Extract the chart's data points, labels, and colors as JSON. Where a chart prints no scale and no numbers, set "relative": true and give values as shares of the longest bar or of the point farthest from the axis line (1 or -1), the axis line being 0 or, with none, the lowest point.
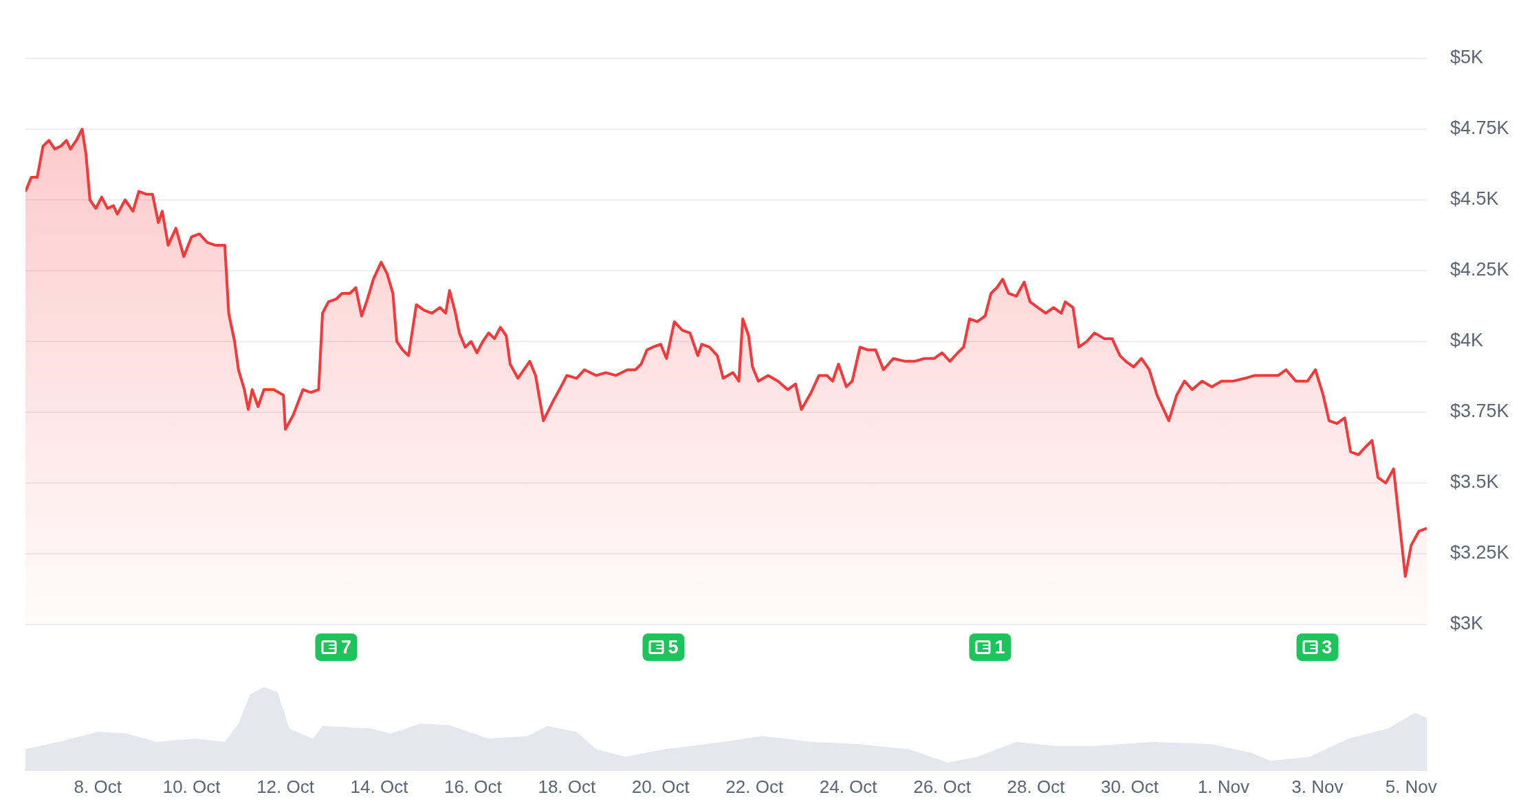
{
  "chart_data": [
    {
      "type": "area",
      "grid": "y",
      "tick_labels": "y",
      "xlim": [
        "--10-06T11:00",
        "--11-05T08:00"
      ],
      "ylim": [
        3000,
        5000
      ],
      "yticks": [
        {
          "value": 3000,
          "label": "$3K"
        },
        {
          "value": 3250,
          "label": "$3.25K"
        },
        {
          "value": 3500,
          "label": "$3.5K"
        },
        {
          "value": 3750,
          "label": "$3.75K"
        },
        {
          "value": 4000,
          "label": "$4K"
        },
        {
          "value": 4250,
          "label": "$4.25K"
        },
        {
          "value": 4500,
          "label": "$4.5K"
        },
        {
          "value": 4750,
          "label": "$4.75K"
        },
        {
          "value": 5000,
          "label": "$5K"
        }
      ],
      "annotations": [
        "7",
        "5",
        "1",
        "3"
      ],
      "color": "#f5383a",
      "x": [
        "--10-06T11:00",
        "--10-06T14:00",
        "--10-06T17:00",
        "--10-06T20:00",
        "--10-06T23:00",
        "--10-07T02:00",
        "--10-07T05:00",
        "--10-07T08:00",
        "--10-07T10:00",
        "--10-07T13:00",
        "--10-07T16:00",
        "--10-07T18:00",
        "--10-07T20:00",
        "--10-07T23:00",
        "--10-08T02:00",
        "--10-08T05:00",
        "--10-08T08:00",
        "--10-08T10:00",
        "--10-08T14:00",
        "--10-08T18:00",
        "--10-08T21:00",
        "--10-09T01:00",
        "--10-09T04:00",
        "--10-09T07:00",
        "--10-09T09:00",
        "--10-09T12:00",
        "--10-09T16:00",
        "--10-09T20:00",
        "--10-10T00:00",
        "--10-10T04:00",
        "--10-10T08:00",
        "--10-10T12:00",
        "--10-10T17:00",
        "--10-10T19:00",
        "--10-10T22:00",
        "--10-11T00:00",
        "--10-11T03:00",
        "--10-11T05:00",
        "--10-11T07:00",
        "--10-11T10:00",
        "--10-11T13:00",
        "--10-11T18:00",
        "--10-11T23:00",
        "--10-12T00:00",
        "--10-12T04:00",
        "--10-12T09:00",
        "--10-12T13:00",
        "--10-12T17:00",
        "--10-12T19:00",
        "--10-12T22:00",
        "--10-13T02:00",
        "--10-13T05:00",
        "--10-13T09:00",
        "--10-13T12:00",
        "--10-13T15:00",
        "--10-13T18:00",
        "--10-13T21:00",
        "--10-14T01:00",
        "--10-14T04:00",
        "--10-14T07:00",
        "--10-14T09:00",
        "--10-14T12:00",
        "--10-14T15:00",
        "--10-14T19:00",
        "--10-14T23:00",
        "--10-15T03:00",
        "--10-15T07:00",
        "--10-15T10:00",
        "--10-15T12:00",
        "--10-15T15:00",
        "--10-15T17:00",
        "--10-15T20:00",
        "--10-15T23:00",
        "--10-16T02:00",
        "--10-16T05:00",
        "--10-16T08:00",
        "--10-16T11:00",
        "--10-16T14:00",
        "--10-16T17:00",
        "--10-16T19:00",
        "--10-16T23:00",
        "--10-17T02:00",
        "--10-17T05:00",
        "--10-17T08:00",
        "--10-17T12:00",
        "--10-17T17:00",
        "--10-17T21:00",
        "--10-18T00:00",
        "--10-18T05:00",
        "--10-18T09:00",
        "--10-18T15:00",
        "--10-18T20:00",
        "--10-19T01:00",
        "--10-19T07:00",
        "--10-19T11:00",
        "--10-19T14:00",
        "--10-19T17:00",
        "--10-19T20:00",
        "--10-20T00:00",
        "--10-20T03:00",
        "--10-20T07:00",
        "--10-20T11:00",
        "--10-20T15:00",
        "--10-20T19:00",
        "--10-20T21:00",
        "--10-21T01:00",
        "--10-21T05:00",
        "--10-21T08:00",
        "--10-21T13:00",
        "--10-21T16:00",
        "--10-21T18:00",
        "--10-21T21:00",
        "--10-21T23:00",
        "--10-22T02:00",
        "--10-22T07:00",
        "--10-22T12:00",
        "--10-22T17:00",
        "--10-22T21:00",
        "--10-23T00:00",
        "--10-23T05:00",
        "--10-23T09:00",
        "--10-23T13:00",
        "--10-23T16:00",
        "--10-23T19:00",
        "--10-23T23:00",
        "--10-24T02:00",
        "--10-24T06:00",
        "--10-24T10:00",
        "--10-24T14:00",
        "--10-24T18:00",
        "--10-24T23:00",
        "--10-25T05:00",
        "--10-25T10:00",
        "--10-25T15:00",
        "--10-25T20:00",
        "--10-26T00:00",
        "--10-26T04:00",
        "--10-26T08:00",
        "--10-26T11:00",
        "--10-26T14:00",
        "--10-26T18:00",
        "--10-26T22:00",
        "--10-27T01:00",
        "--10-27T04:00",
        "--10-27T07:00",
        "--10-27T10:00",
        "--10-27T14:00",
        "--10-27T18:00",
        "--10-27T21:00",
        "--10-28T01:00",
        "--10-28T05:00",
        "--10-28T09:00",
        "--10-28T13:00",
        "--10-28T15:00",
        "--10-28T19:00",
        "--10-28T22:00",
        "--10-29T02:00",
        "--10-29T06:00",
        "--10-29T11:00",
        "--10-29T15:00",
        "--10-29T19:00",
        "--10-29T22:00",
        "--10-30T02:00",
        "--10-30T06:00",
        "--10-30T10:00",
        "--10-30T14:00",
        "--10-30T20:00",
        "--10-31T00:00",
        "--10-31T04:00",
        "--10-31T08:00",
        "--10-31T13:00",
        "--10-31T18:00",
        "--10-31T23:00",
        "--11-01T05:00",
        "--11-01T11:00",
        "--11-01T16:00",
        "--11-01T22:00",
        "--11-02T04:00",
        "--11-02T08:00",
        "--11-02T13:00",
        "--11-02T19:00",
        "--11-02T23:00",
        "--11-03T03:00",
        "--11-03T06:00",
        "--11-03T10:00",
        "--11-03T14:00",
        "--11-03T17:00",
        "--11-03T21:00",
        "--11-04T01:00",
        "--11-04T04:00",
        "--11-04T07:00",
        "--11-04T11:00",
        "--11-04T15:00",
        "--11-04T18:00",
        "--11-04T21:00",
        "--11-05T00:00",
        "--11-05T04:00",
        "--11-05T08:00"
      ],
      "values": [
        4530,
        4580,
        4580,
        4690,
        4710,
        4680,
        4690,
        4710,
        4680,
        4710,
        4750,
        4660,
        4500,
        4470,
        4510,
        4470,
        4480,
        4450,
        4500,
        4460,
        4530,
        4520,
        4520,
        4420,
        4460,
        4340,
        4400,
        4300,
        4370,
        4380,
        4350,
        4340,
        4340,
        4100,
        4000,
        3900,
        3830,
        3760,
        3830,
        3770,
        3830,
        3830,
        3810,
        3690,
        3740,
        3830,
        3820,
        3830,
        4100,
        4140,
        4150,
        4170,
        4170,
        4190,
        4090,
        4150,
        4220,
        4280,
        4240,
        4170,
        4000,
        3970,
        3950,
        4130,
        4110,
        4100,
        4120,
        4100,
        4180,
        4100,
        4030,
        3980,
        4000,
        3960,
        4000,
        4030,
        4010,
        4050,
        4020,
        3920,
        3870,
        3900,
        3930,
        3880,
        3720,
        3790,
        3840,
        3880,
        3870,
        3900,
        3880,
        3890,
        3880,
        3900,
        3900,
        3920,
        3970,
        3980,
        3990,
        3940,
        4070,
        4040,
        4030,
        3950,
        3990,
        3980,
        3950,
        3870,
        3890,
        3860,
        4080,
        4020,
        3910,
        3860,
        3880,
        3860,
        3830,
        3850,
        3760,
        3820,
        3880,
        3880,
        3860,
        3920,
        3840,
        3860,
        3980,
        3970,
        3970,
        3900,
        3940,
        3930,
        3930,
        3940,
        3940,
        3960,
        3930,
        3960,
        3980,
        4080,
        4070,
        4090,
        4170,
        4190,
        4220,
        4170,
        4160,
        4210,
        4140,
        4120,
        4100,
        4120,
        4100,
        4140,
        4120,
        3980,
        4000,
        4030,
        4010,
        4010,
        3950,
        3930,
        3910,
        3940,
        3900,
        3810,
        3720,
        3810,
        3860,
        3830,
        3860,
        3840,
        3860,
        3860,
        3870,
        3880,
        3880,
        3880,
        3900,
        3860,
        3860,
        3900,
        3810,
        3720,
        3710,
        3730,
        3610,
        3600,
        3630,
        3650,
        3520,
        3500,
        3550,
        3360,
        3170,
        3280,
        3330,
        3340
      ]
    },
    {
      "type": "area",
      "relative": true,
      "tick_labels": "x",
      "color": "#e6e7ee",
      "xlim": [
        "--10-06T11:00",
        "--11-05T08:00"
      ],
      "xticks": [
        {
          "value": "--10-08",
          "label": "8. Oct"
        },
        {
          "value": "--10-10",
          "label": "10. Oct"
        },
        {
          "value": "--10-12",
          "label": "12. Oct"
        },
        {
          "value": "--10-14",
          "label": "14. Oct"
        },
        {
          "value": "--10-16",
          "label": "16. Oct"
        },
        {
          "value": "--10-18",
          "label": "18. Oct"
        },
        {
          "value": "--10-20",
          "label": "20. Oct"
        },
        {
          "value": "--10-22",
          "label": "22. Oct"
        },
        {
          "value": "--10-24",
          "label": "24. Oct"
        },
        {
          "value": "--10-26",
          "label": "26. Oct"
        },
        {
          "value": "--10-28",
          "label": "28. Oct"
        },
        {
          "value": "--10-30",
          "label": "30. Oct"
        },
        {
          "value": "--11-01",
          "label": "1. Nov"
        },
        {
          "value": "--11-03",
          "label": "3. Nov"
        },
        {
          "value": "--11-05",
          "label": "5. Nov"
        }
      ],
      "x": [
        "--10-06T11:00",
        "--10-07T04:00",
        "--10-08T00:00",
        "--10-08T15:00",
        "--10-09T06:00",
        "--10-10T02:00",
        "--10-10T17:00",
        "--10-11T00:00",
        "--10-11T06:00",
        "--10-11T13:00",
        "--10-11T20:00",
        "--10-12T02:00",
        "--10-12T14:00",
        "--10-12T19:00",
        "--10-13T20:00",
        "--10-14T06:00",
        "--10-14T21:00",
        "--10-15T12:00",
        "--10-16T08:00",
        "--10-17T04:00",
        "--10-17T14:00",
        "--10-18T05:00",
        "--10-18T15:00",
        "--10-19T06:00",
        "--10-20T02:00",
        "--10-21T08:00",
        "--10-22T04:00",
        "--10-23T05:00",
        "--10-24T06:00",
        "--10-25T07:00",
        "--10-26T03:00",
        "--10-26T18:00",
        "--10-27T14:00",
        "--10-28T10:00",
        "--10-29T06:00",
        "--10-30T12:00",
        "--10-31T18:00",
        "--11-01T14:00",
        "--11-02T00:00",
        "--11-02T20:00",
        "--11-03T16:00",
        "--11-04T12:00",
        "--11-05T02:00",
        "--11-05T08:00"
      ],
      "values": [
        0.25,
        0.34,
        0.46,
        0.44,
        0.34,
        0.38,
        0.34,
        0.56,
        0.91,
        1,
        0.94,
        0.5,
        0.38,
        0.53,
        0.5,
        0.44,
        0.56,
        0.54,
        0.38,
        0.41,
        0.53,
        0.46,
        0.25,
        0.16,
        0.25,
        0.34,
        0.41,
        0.34,
        0.31,
        0.25,
        0.09,
        0.16,
        0.34,
        0.29,
        0.29,
        0.34,
        0.31,
        0.21,
        0.11,
        0.16,
        0.38,
        0.5,
        0.69,
        0.63
      ]
    }
  ]
}
